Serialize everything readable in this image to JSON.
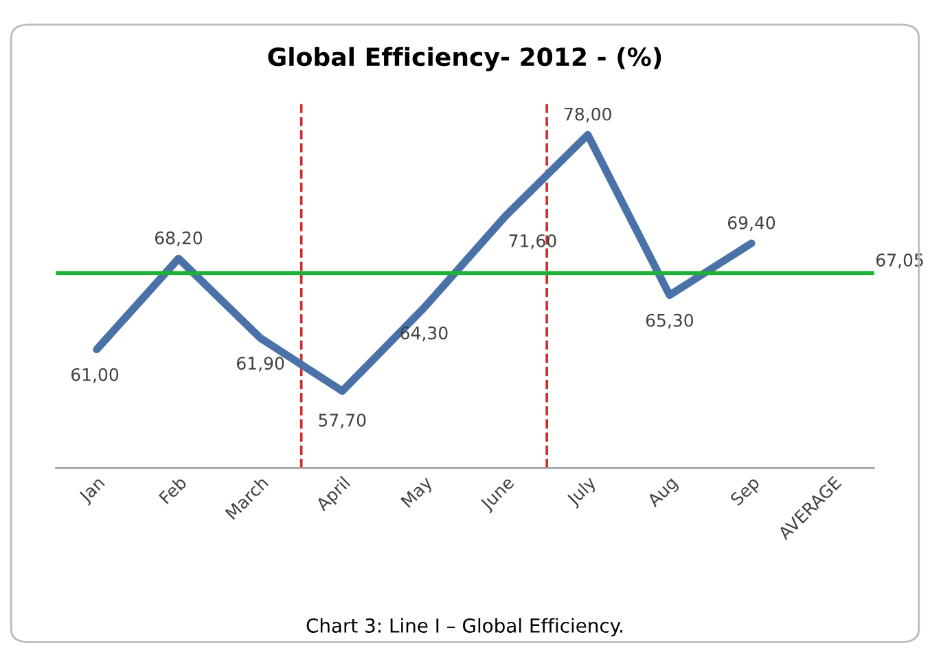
{
  "chart_data": {
    "type": "line",
    "title": "Global Efficiency- 2012 - (%)",
    "categories": [
      "Jan",
      "Feb",
      "March",
      "April",
      "May",
      "June",
      "July",
      "Aug",
      "Sep",
      "AVERAGE"
    ],
    "series": [
      {
        "color": "#4a72a8",
        "values": [
          61.0,
          68.2,
          61.9,
          57.7,
          64.3,
          71.6,
          78.0,
          65.3,
          69.4,
          null
        ],
        "value_labels": [
          "61,00",
          "68,20",
          "61,90",
          "57,70",
          "64,30",
          "71,60",
          "78,00",
          "65,30",
          "69,40",
          null
        ]
      }
    ],
    "ref_lines": [
      {
        "axis": "y",
        "value": 67.05,
        "label": "67,05",
        "color": "#1fb03a",
        "line_style": "solid"
      }
    ],
    "annotations": [
      "Chart 3: Line I – Global Efficiency."
    ],
    "marker": "none",
    "line_style": "solid",
    "grid": false,
    "legend": false
  }
}
